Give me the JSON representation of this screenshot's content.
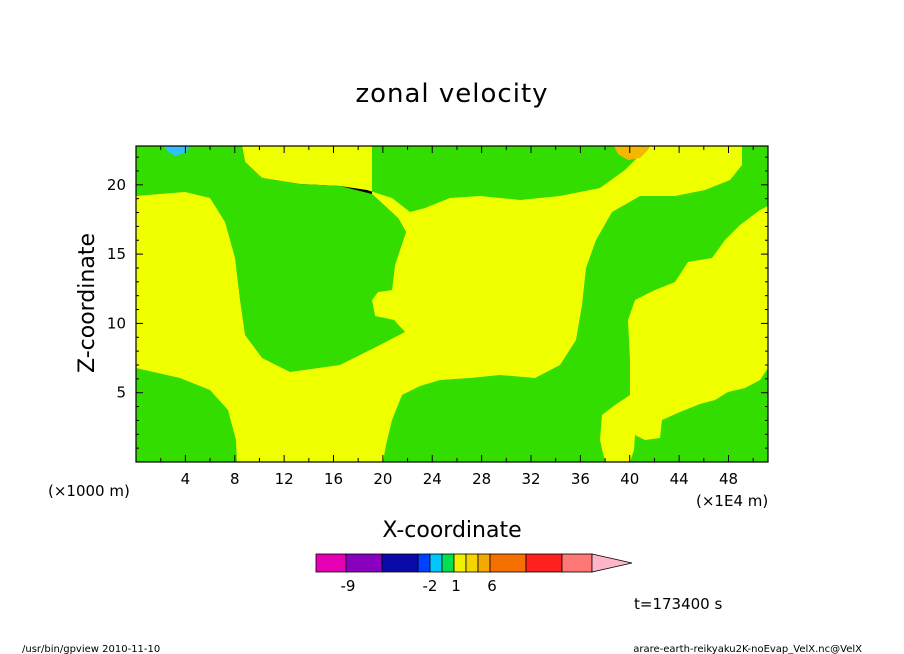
{
  "chart_data": {
    "type": "contour",
    "title": "zonal velocity",
    "xlabel": "X-coordinate",
    "ylabel": "Z-coordinate",
    "x_unit": "(×1E4 m)",
    "y_unit": "(×1000 m)",
    "xlim": [
      0,
      51.2
    ],
    "ylim": [
      0,
      22.8
    ],
    "x_ticks": [
      "4",
      "8",
      "12",
      "16",
      "20",
      "24",
      "28",
      "32",
      "36",
      "40",
      "44",
      "48"
    ],
    "y_ticks": [
      "5",
      "10",
      "15",
      "20"
    ],
    "colorbar": {
      "colors": [
        "#e600b4",
        "#8a00bf",
        "#0a0aa8",
        "#0040ff",
        "#00c8ff",
        "#00e050",
        "#f0f000",
        "#f5d400",
        "#f5a800",
        "#f57000",
        "#ff2020",
        "#ff7878",
        "#ffb4c8"
      ],
      "tick_labels": [
        "-9",
        "-2",
        "1",
        "6"
      ]
    },
    "regions": {
      "background_color": "#33dd00",
      "positive_color": "#f0ff00",
      "cold_spot_color": "#33c0ff",
      "warm_spot_color": "#f5b800"
    },
    "time_label": "t=173400 s"
  },
  "footer": {
    "left": "/usr/bin/gpview  2010-11-10",
    "right": "arare-earth-reikyaku2K-noEvap_VelX.nc@VelX"
  }
}
